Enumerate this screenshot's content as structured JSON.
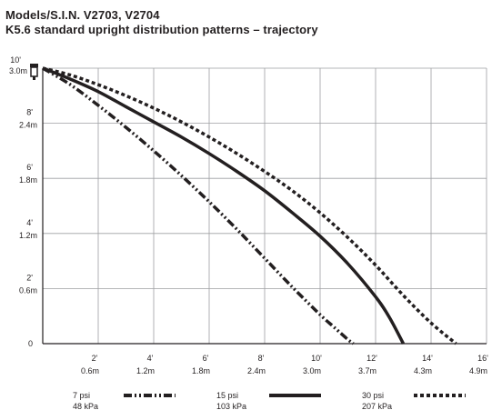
{
  "header": {
    "title": "Models/S.I.N. V2703, V2704",
    "subtitle": "K5.6 standard upright distribution patterns – trajectory"
  },
  "colors": {
    "line": "#231f20",
    "grid": "#9d9fa2",
    "background": "#ffffff"
  },
  "icon": "sprinkler-head-icon",
  "chart_data": {
    "type": "line",
    "title": "Models/S.I.N. V2703, V2704",
    "subtitle": "K5.6 standard upright distribution patterns – trajectory",
    "xlabel": "",
    "ylabel": "",
    "xlim": [
      0,
      16
    ],
    "ylim": [
      0,
      10
    ],
    "grid": true,
    "legend_position": "bottom",
    "x_ticks": [
      {
        "value": 2,
        "label": "2'",
        "metric": "0.6m"
      },
      {
        "value": 4,
        "label": "4'",
        "metric": "1.2m"
      },
      {
        "value": 6,
        "label": "6'",
        "metric": "1.8m"
      },
      {
        "value": 8,
        "label": "8'",
        "metric": "2.4m"
      },
      {
        "value": 10,
        "label": "10'",
        "metric": "3.0m"
      },
      {
        "value": 12,
        "label": "12'",
        "metric": "3.7m"
      },
      {
        "value": 14,
        "label": "14'",
        "metric": "4.3m"
      },
      {
        "value": 16,
        "label": "16'",
        "metric": "4.9m"
      }
    ],
    "y_ticks": [
      {
        "value": 0,
        "label": "0",
        "metric": ""
      },
      {
        "value": 2,
        "label": "2'",
        "metric": "0.6m"
      },
      {
        "value": 4,
        "label": "4'",
        "metric": "1.2m"
      },
      {
        "value": 6,
        "label": "6'",
        "metric": "1.8m"
      },
      {
        "value": 8,
        "label": "8'",
        "metric": "2.4m"
      },
      {
        "value": 10,
        "label": "10'",
        "metric": "3.0m"
      }
    ],
    "series": [
      {
        "name": "7 psi",
        "metric": "48 kPa",
        "style": "dash-dot",
        "x": [
          0,
          1,
          2,
          3,
          4,
          5,
          6,
          7,
          8,
          9,
          10,
          10.5,
          11,
          11.2
        ],
        "y": [
          10,
          9.4,
          8.65,
          7.85,
          7.0,
          6.1,
          5.15,
          4.15,
          3.1,
          2.05,
          1.05,
          0.6,
          0.15,
          0
        ]
      },
      {
        "name": "15 psi",
        "metric": "103 kPa",
        "style": "solid",
        "x": [
          0,
          1,
          2,
          3,
          4,
          5,
          6,
          7,
          8,
          9,
          10,
          11,
          12,
          12.5,
          13.0
        ],
        "y": [
          10,
          9.6,
          9.15,
          8.6,
          8.05,
          7.5,
          6.9,
          6.25,
          5.55,
          4.75,
          3.9,
          2.9,
          1.7,
          0.95,
          0
        ]
      },
      {
        "name": "30 psi",
        "metric": "207 kPa",
        "style": "dotted",
        "x": [
          0,
          1,
          2,
          3,
          4,
          5,
          6,
          7,
          8,
          9,
          10,
          11,
          12,
          13,
          14,
          14.9
        ],
        "y": [
          10,
          9.75,
          9.4,
          9.0,
          8.55,
          8.05,
          7.5,
          6.9,
          6.25,
          5.55,
          4.75,
          3.85,
          2.85,
          1.75,
          0.75,
          0
        ]
      }
    ]
  }
}
